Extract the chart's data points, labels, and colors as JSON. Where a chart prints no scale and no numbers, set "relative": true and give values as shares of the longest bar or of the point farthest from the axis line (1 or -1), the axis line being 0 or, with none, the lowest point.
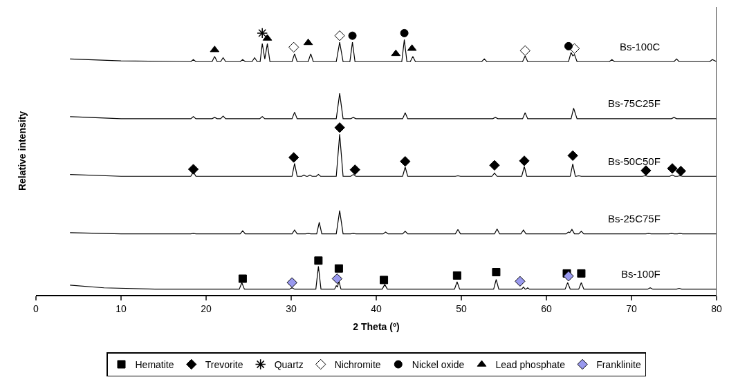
{
  "chart_data": {
    "type": "line",
    "relative": true,
    "xlabel": "2 Theta (º)",
    "ylabel": "Relative intensity",
    "xlim": [
      0,
      80
    ],
    "xticks": [
      0,
      10,
      20,
      30,
      40,
      50,
      60,
      70,
      80
    ],
    "legend": "bottom",
    "line_style": "solid",
    "series": [
      {
        "name": "Bs-100C",
        "color": "#000000",
        "x": [
          4,
          10,
          18.2,
          18.5,
          18.8,
          20.7,
          21,
          21.3,
          21.7,
          22,
          22.3,
          24,
          24.3,
          24.6,
          25.4,
          25.7,
          26,
          26.35,
          26.6,
          26.9,
          27.2,
          27.5,
          30.1,
          30.4,
          30.7,
          32,
          32.3,
          32.6,
          35.3,
          35.7,
          36.1,
          36.9,
          37.2,
          37.5,
          43,
          43.3,
          43.6,
          44,
          44.3,
          44.6,
          52.4,
          52.7,
          53,
          57.2,
          57.5,
          57.8,
          62.6,
          62.9,
          63.1,
          63.3,
          63.6,
          67.4,
          67.7,
          68,
          75,
          75.3,
          75.6,
          79.2,
          79.5,
          80
        ],
        "values": [
          0.901,
          0.894,
          0.891,
          0.899,
          0.891,
          0.891,
          0.911,
          0.891,
          0.891,
          0.906,
          0.891,
          0.891,
          0.899,
          0.891,
          0.891,
          0.906,
          0.891,
          0.891,
          0.96,
          0.901,
          0.96,
          0.891,
          0.891,
          0.921,
          0.891,
          0.891,
          0.921,
          0.891,
          0.891,
          0.965,
          0.891,
          0.891,
          0.965,
          0.891,
          0.891,
          0.975,
          0.891,
          0.891,
          0.911,
          0.891,
          0.891,
          0.901,
          0.891,
          0.891,
          0.913,
          0.891,
          0.891,
          0.926,
          0.913,
          0.918,
          0.891,
          0.891,
          0.899,
          0.891,
          0.891,
          0.901,
          0.891,
          0.891,
          0.899,
          0.891
        ]
      },
      {
        "name": "Bs-75C25F",
        "color": "#000000",
        "x": [
          4,
          10,
          18.2,
          18.5,
          18.8,
          20.7,
          21,
          21.3,
          21.7,
          22,
          22.3,
          26.3,
          26.6,
          26.9,
          30.1,
          30.4,
          30.7,
          35.3,
          35.7,
          36.1,
          37,
          37.3,
          37.6,
          43.1,
          43.4,
          43.7,
          53.7,
          54,
          54.3,
          57.2,
          57.5,
          57.8,
          62.9,
          63.2,
          63.6,
          74.7,
          75,
          75.3,
          80
        ],
        "values": [
          0.681,
          0.673,
          0.673,
          0.681,
          0.673,
          0.673,
          0.678,
          0.673,
          0.673,
          0.683,
          0.673,
          0.673,
          0.681,
          0.673,
          0.673,
          0.698,
          0.673,
          0.673,
          0.77,
          0.673,
          0.673,
          0.678,
          0.673,
          0.673,
          0.696,
          0.673,
          0.673,
          0.678,
          0.673,
          0.673,
          0.696,
          0.673,
          0.673,
          0.713,
          0.673,
          0.673,
          0.678,
          0.673,
          0.673
        ]
      },
      {
        "name": "Bs-50C50F",
        "color": "#000000",
        "x": [
          4,
          10,
          18.2,
          18.5,
          18.8,
          30.1,
          30.4,
          30.7,
          31.25,
          31.5,
          31.75,
          31.95,
          32.2,
          32.45,
          32.95,
          33.2,
          33.45,
          35.3,
          35.7,
          36.1,
          37,
          37.3,
          37.6,
          43.1,
          43.4,
          43.7,
          49.3,
          49.6,
          49.9,
          53.6,
          53.9,
          54.2,
          57.1,
          57.4,
          57.7,
          62.8,
          63.1,
          63.4,
          63.5,
          63.8,
          64.1,
          71.3,
          71.6,
          71.9,
          74.5,
          74.8,
          75.1,
          75.4,
          75.7,
          76,
          80
        ],
        "values": [
          0.46,
          0.453,
          0.453,
          0.47,
          0.453,
          0.453,
          0.502,
          0.453,
          0.453,
          0.458,
          0.453,
          0.453,
          0.458,
          0.453,
          0.453,
          0.46,
          0.453,
          0.453,
          0.614,
          0.453,
          0.453,
          0.46,
          0.453,
          0.453,
          0.488,
          0.453,
          0.453,
          0.455,
          0.453,
          0.453,
          0.465,
          0.453,
          0.453,
          0.49,
          0.453,
          0.453,
          0.5,
          0.453,
          0.453,
          0.455,
          0.453,
          0.453,
          0.455,
          0.453,
          0.453,
          0.458,
          0.453,
          0.453,
          0.455,
          0.453,
          0.453
        ]
      },
      {
        "name": "Bs-25C75F",
        "color": "#000000",
        "x": [
          4,
          10,
          18.2,
          18.5,
          18.8,
          24,
          24.3,
          24.6,
          30.1,
          30.4,
          30.7,
          31.7,
          32,
          32.3,
          33,
          33.3,
          33.6,
          35.3,
          35.7,
          36.1,
          37,
          37.3,
          37.6,
          40.8,
          41.1,
          41.4,
          43.1,
          43.4,
          43.7,
          49.3,
          49.6,
          49.9,
          53.9,
          54.2,
          54.5,
          57,
          57.3,
          57.6,
          62.3,
          62.6,
          62.75,
          63,
          63.3,
          63.8,
          64.1,
          64.4,
          71.7,
          72,
          72.3,
          74.4,
          74.7,
          75,
          75.4,
          75.7,
          76,
          80
        ],
        "values": [
          0.238,
          0.233,
          0.233,
          0.235,
          0.233,
          0.233,
          0.245,
          0.233,
          0.233,
          0.248,
          0.233,
          0.233,
          0.235,
          0.233,
          0.233,
          0.277,
          0.233,
          0.233,
          0.322,
          0.233,
          0.233,
          0.235,
          0.233,
          0.233,
          0.24,
          0.233,
          0.233,
          0.243,
          0.233,
          0.233,
          0.25,
          0.233,
          0.233,
          0.252,
          0.233,
          0.233,
          0.248,
          0.233,
          0.233,
          0.24,
          0.238,
          0.25,
          0.233,
          0.233,
          0.243,
          0.233,
          0.233,
          0.235,
          0.233,
          0.233,
          0.235,
          0.233,
          0.233,
          0.235,
          0.233,
          0.233
        ]
      },
      {
        "name": "Bs-100F",
        "color": "#000000",
        "x": [
          4,
          8,
          14,
          23.9,
          24.2,
          24.5,
          29.8,
          30.1,
          30.4,
          32.9,
          33.2,
          33.5,
          35.1,
          35.3,
          35.45,
          35.6,
          35.85,
          40.7,
          41,
          41.3,
          49.2,
          49.5,
          49.8,
          53.8,
          54.1,
          54.4,
          57.1,
          57.3,
          57.5,
          57.6,
          57.8,
          58,
          62.2,
          62.5,
          62.8,
          63.8,
          64.1,
          64.4,
          71.9,
          72.2,
          72.5,
          75.3,
          75.6,
          75.9,
          80
        ],
        "values": [
          0.037,
          0.027,
          0.022,
          0.022,
          0.047,
          0.022,
          0.022,
          0.027,
          0.022,
          0.022,
          0.109,
          0.022,
          0.022,
          0.035,
          0.03,
          0.054,
          0.022,
          0.022,
          0.04,
          0.022,
          0.022,
          0.05,
          0.022,
          0.022,
          0.059,
          0.022,
          0.022,
          0.03,
          0.022,
          0.022,
          0.027,
          0.022,
          0.022,
          0.047,
          0.022,
          0.022,
          0.047,
          0.022,
          0.022,
          0.027,
          0.022,
          0.022,
          0.025,
          0.022,
          0.022
        ]
      },
      {
        "name": "Hematite",
        "type": "scatter",
        "color": "#000000",
        "marker": "square",
        "x": [
          24.3,
          33.2,
          35.6,
          40.9,
          49.5,
          54.1,
          62.4,
          64.1
        ],
        "values": [
          0.062,
          0.131,
          0.101,
          0.057,
          0.074,
          0.087,
          0.082,
          0.082
        ]
      },
      {
        "name": "Trevorite",
        "type": "scatter",
        "color": "#000000",
        "marker": "diamond",
        "x": [
          18.5,
          30.3,
          35.7,
          37.5,
          43.4,
          53.9,
          57.4,
          63.1,
          71.7,
          74.8,
          75.8
        ],
        "values": [
          0.48,
          0.525,
          0.639,
          0.478,
          0.51,
          0.495,
          0.512,
          0.532,
          0.475,
          0.483,
          0.473
        ]
      },
      {
        "name": "Quartz",
        "type": "scatter",
        "color": "#000000",
        "marker": "cross",
        "x": [
          26.6
        ],
        "values": [
          1.0
        ]
      },
      {
        "name": "Nichromite",
        "type": "scatter",
        "color": "#ffffff",
        "marker": "diamond",
        "x": [
          30.3,
          35.7,
          57.5,
          63.3
        ],
        "values": [
          0.946,
          0.99,
          0.933,
          0.941
        ]
      },
      {
        "name": "Nickel oxide",
        "type": "scatter",
        "color": "#000000",
        "marker": "circle",
        "x": [
          37.2,
          43.3,
          62.6
        ],
        "values": [
          0.99,
          1.0,
          0.95
        ]
      },
      {
        "name": "Lead phosphate",
        "type": "scatter",
        "color": "#000000",
        "marker": "triangle",
        "x": [
          21,
          27.2,
          32.0,
          42.3,
          44.2
        ],
        "values": [
          0.936,
          0.98,
          0.963,
          0.921,
          0.941
        ]
      },
      {
        "name": "Franklinite",
        "type": "scatter",
        "color": "#9999ee",
        "marker": "diamond",
        "x": [
          30.1,
          35.4,
          56.9,
          62.6
        ],
        "values": [
          0.047,
          0.062,
          0.052,
          0.072
        ]
      }
    ]
  }
}
